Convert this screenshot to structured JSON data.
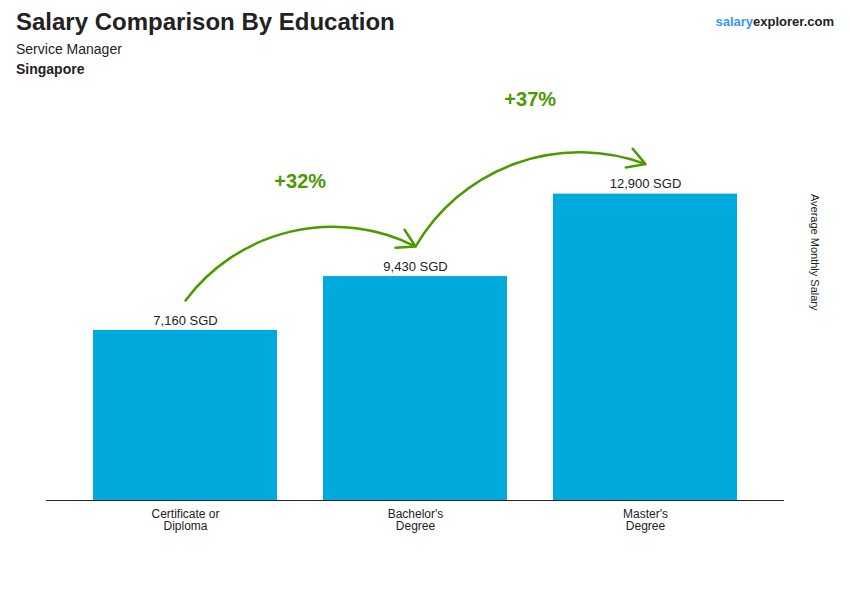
{
  "chart_data": {
    "type": "bar",
    "title": "Salary Comparison By Education",
    "subtitle": "Service Manager",
    "ylabel": "Average Monthly Salary",
    "categories": [
      "Certificate or\nDiploma",
      "Bachelor's\nDegree",
      "Master's\nDegree"
    ],
    "values": [
      7160,
      9430,
      12900
    ],
    "value_labels": [
      "7,160 SGD",
      "9,430 SGD",
      "12,900 SGD"
    ],
    "data_labels": true,
    "color": "#00AADD",
    "ylim": [
      0,
      16000
    ],
    "tick_labels": "x",
    "grid": false,
    "annotations": [
      {
        "text": "Singapore"
      },
      {
        "text": "salary",
        "color": "#3399FF"
      },
      {
        "text": "explorer.com"
      },
      {
        "text": "+32%",
        "from": "Certificate or\nDiploma",
        "to": "Bachelor's\nDegree"
      },
      {
        "text": "+37%",
        "from": "Bachelor's\nDegree",
        "to": "Master's\nDegree"
      }
    ]
  }
}
